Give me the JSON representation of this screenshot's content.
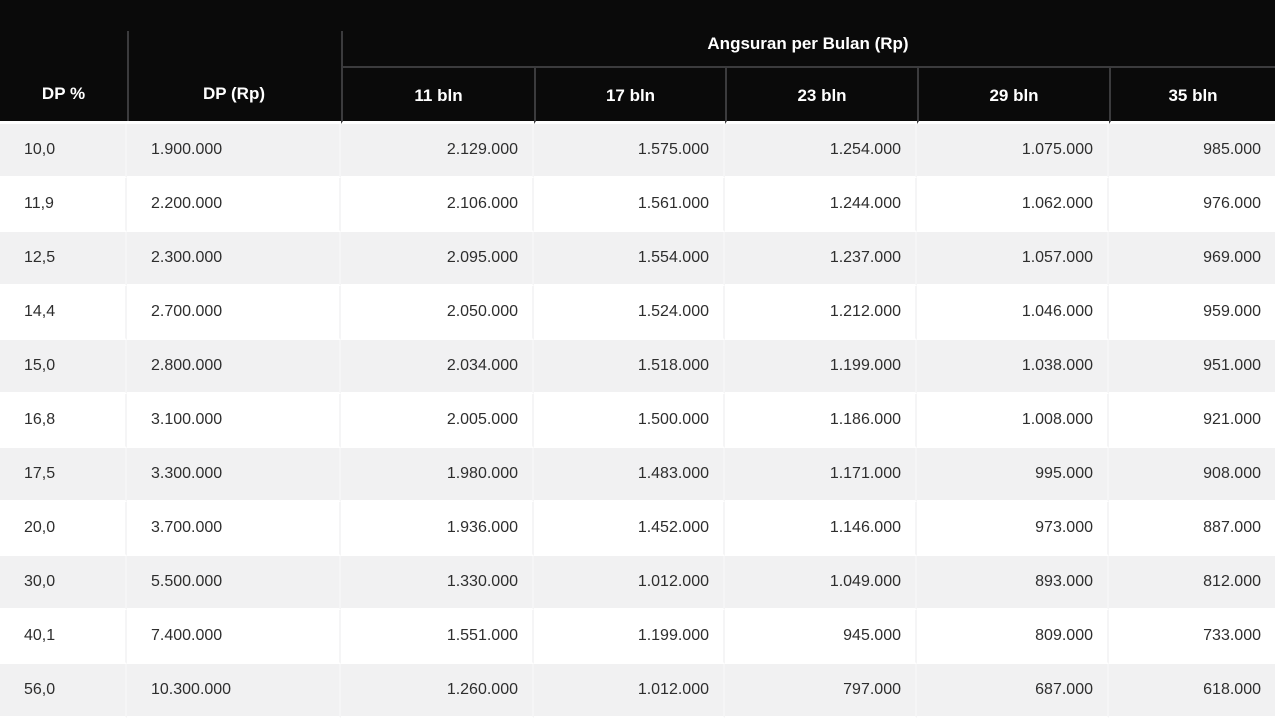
{
  "chart_data": {
    "type": "table",
    "title": "Angsuran per Bulan (Rp)",
    "columns": {
      "dp_percent": "DP %",
      "dp_rp": "DP (Rp)",
      "group": "Angsuran per Bulan (Rp)",
      "months": [
        "11 bln",
        "17 bln",
        "23 bln",
        "29 bln",
        "35 bln"
      ]
    },
    "rows": [
      [
        "10,0",
        "1.900.000",
        "2.129.000",
        "1.575.000",
        "1.254.000",
        "1.075.000",
        "985.000"
      ],
      [
        "11,9",
        "2.200.000",
        "2.106.000",
        "1.561.000",
        "1.244.000",
        "1.062.000",
        "976.000"
      ],
      [
        "12,5",
        "2.300.000",
        "2.095.000",
        "1.554.000",
        "1.237.000",
        "1.057.000",
        "969.000"
      ],
      [
        "14,4",
        "2.700.000",
        "2.050.000",
        "1.524.000",
        "1.212.000",
        "1.046.000",
        "959.000"
      ],
      [
        "15,0",
        "2.800.000",
        "2.034.000",
        "1.518.000",
        "1.199.000",
        "1.038.000",
        "951.000"
      ],
      [
        "16,8",
        "3.100.000",
        "2.005.000",
        "1.500.000",
        "1.186.000",
        "1.008.000",
        "921.000"
      ],
      [
        "17,5",
        "3.300.000",
        "1.980.000",
        "1.483.000",
        "1.171.000",
        "995.000",
        "908.000"
      ],
      [
        "20,0",
        "3.700.000",
        "1.936.000",
        "1.452.000",
        "1.146.000",
        "973.000",
        "887.000"
      ],
      [
        "30,0",
        "5.500.000",
        "1.330.000",
        "1.012.000",
        "1.049.000",
        "893.000",
        "812.000"
      ],
      [
        "40,1",
        "7.400.000",
        "1.551.000",
        "1.199.000",
        "945.000",
        "809.000",
        "733.000"
      ],
      [
        "56,0",
        "10.300.000",
        "1.260.000",
        "1.012.000",
        "797.000",
        "687.000",
        "618.000"
      ]
    ]
  },
  "colors": {
    "header_bg": "#0a0a0a",
    "header_text": "#ffffff",
    "header_divider": "#3b3b3d",
    "row_stripe": "#f1f1f2",
    "row_alt": "#ffffff",
    "body_text": "#2e2e2e"
  }
}
